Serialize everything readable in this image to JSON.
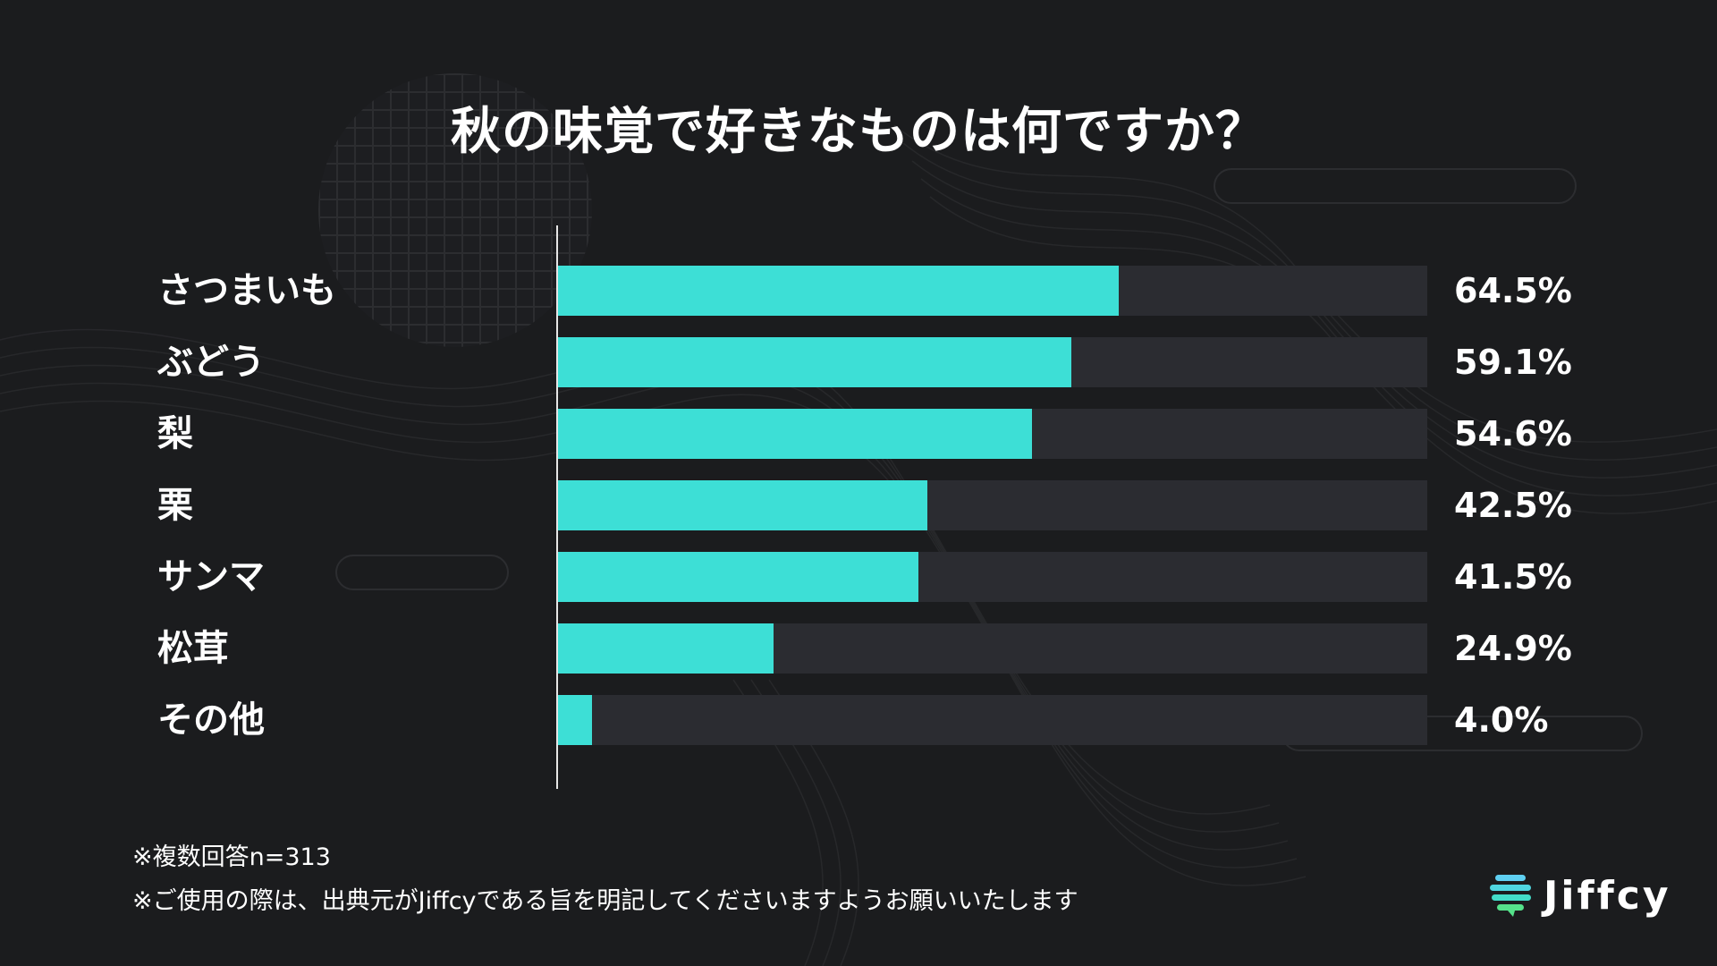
{
  "chart_data": {
    "type": "bar",
    "orientation": "horizontal",
    "title": "秋の味覚で好きなものは何ですか？",
    "categories": [
      "さつまいも",
      "ぶどう",
      "梨",
      "栗",
      "サンマ",
      "松茸",
      "その他"
    ],
    "values": [
      64.5,
      59.1,
      54.6,
      42.5,
      41.5,
      24.9,
      4.0
    ],
    "value_labels": [
      "64.5%",
      "59.1%",
      "54.6%",
      "42.5%",
      "41.5%",
      "24.9%",
      "4.0%"
    ],
    "xlim": [
      0,
      100
    ],
    "grid": false,
    "unit": "%",
    "colors": {
      "bar": "#3ddfd6",
      "track": "#2b2c31",
      "background": "#1b1c1e"
    }
  },
  "footnotes": {
    "line1": "※複数回答n=313",
    "line2": "※ご使用の際は、出典元がJiffcyである旨を明記してくださいますようお願いいたします"
  },
  "brand": {
    "name": "Jiffcy",
    "icon": "jiffcy-logo-icon",
    "colors": [
      "#5fd0f2",
      "#42dcc8",
      "#55e28a"
    ]
  }
}
